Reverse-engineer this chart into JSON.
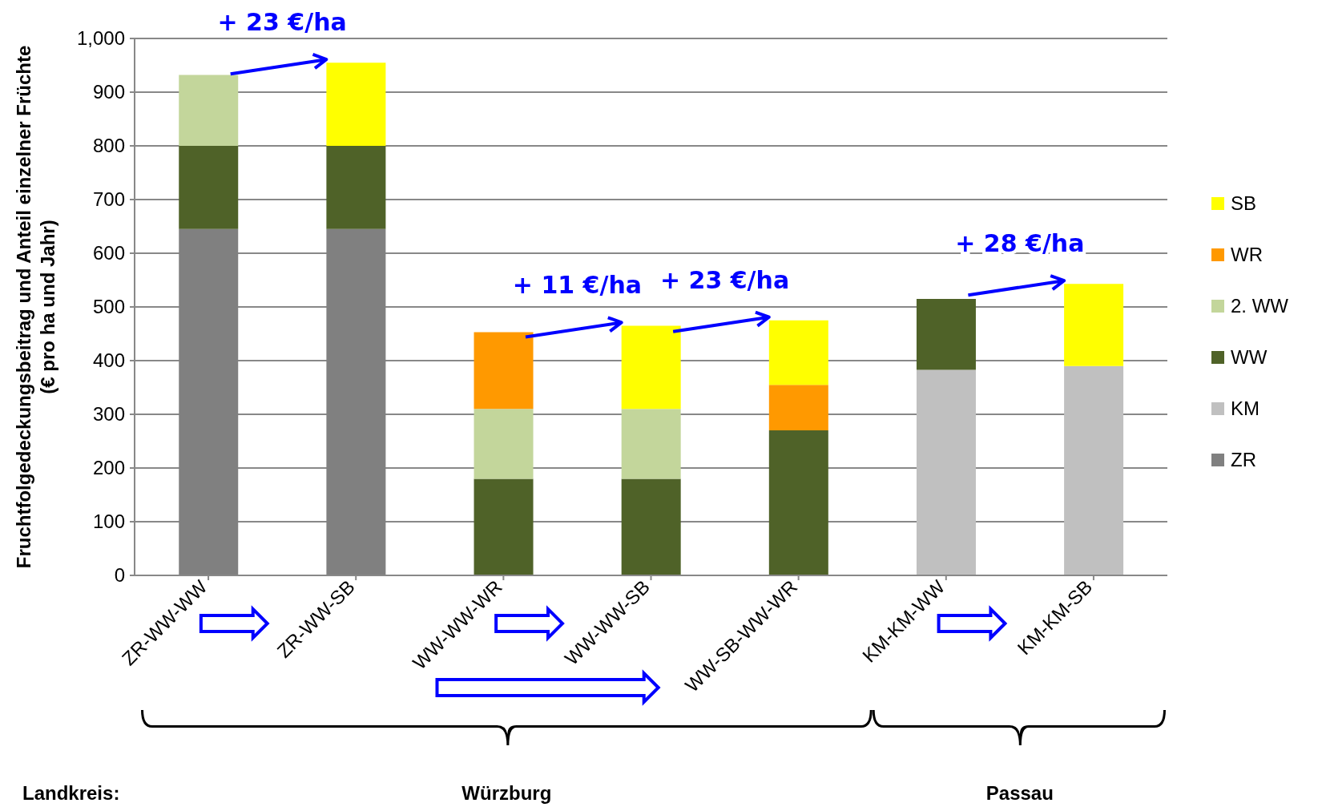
{
  "chart_data": {
    "type": "bar",
    "stacked": true,
    "ylabel": "Fruchtfolgedeckungsbeitrag und Anteil einzelner Früchte\n(€ pro ha und Jahr)",
    "categories": [
      "ZR-WW-WW",
      "ZR-WW-SB",
      "WW-WW-WR",
      "WW-WW-SB",
      "WW-SB-WW-WR",
      "KM-KM-WW",
      "KM-KM-SB"
    ],
    "series": [
      {
        "name": "ZR",
        "color": "#808080",
        "values": [
          645,
          645,
          null,
          null,
          null,
          null,
          null
        ]
      },
      {
        "name": "KM",
        "color": "#c0c0c0",
        "values": [
          null,
          null,
          null,
          null,
          null,
          383,
          390
        ]
      },
      {
        "name": "WW",
        "color": "#4f6228",
        "values": [
          155,
          155,
          180,
          180,
          270,
          132,
          null
        ]
      },
      {
        "name": "2. WW",
        "color": "#c3d69b",
        "values": [
          132,
          null,
          130,
          130,
          null,
          null,
          null
        ]
      },
      {
        "name": "WR",
        "color": "#ff9900",
        "values": [
          null,
          null,
          143,
          null,
          85,
          null,
          null
        ]
      },
      {
        "name": "SB",
        "color": "#ffff00",
        "values": [
          null,
          155,
          null,
          155,
          120,
          null,
          153
        ]
      }
    ],
    "ylim": [
      0,
      1000
    ],
    "yticks": [
      0,
      100,
      200,
      300,
      400,
      500,
      600,
      700,
      800,
      900,
      {
        "value": 1000,
        "label": "1,000"
      }
    ],
    "grid": "y",
    "legend": "right",
    "annotations": [
      {
        "text": "+ 23 €/ha",
        "x": "ZR-WW-SB",
        "y": 955
      },
      {
        "text": "+ 11 €/ha",
        "x": "WW-WW-SB",
        "y": 465
      },
      {
        "text": "+ 23 €/ha",
        "x": "WW-SB-WW-WR",
        "y": 475
      },
      {
        "text": "+ 28 €/ha",
        "x": "KM-KM-SB",
        "y": 543
      },
      "Landkreis:",
      "Würzburg",
      "Passau"
    ]
  }
}
